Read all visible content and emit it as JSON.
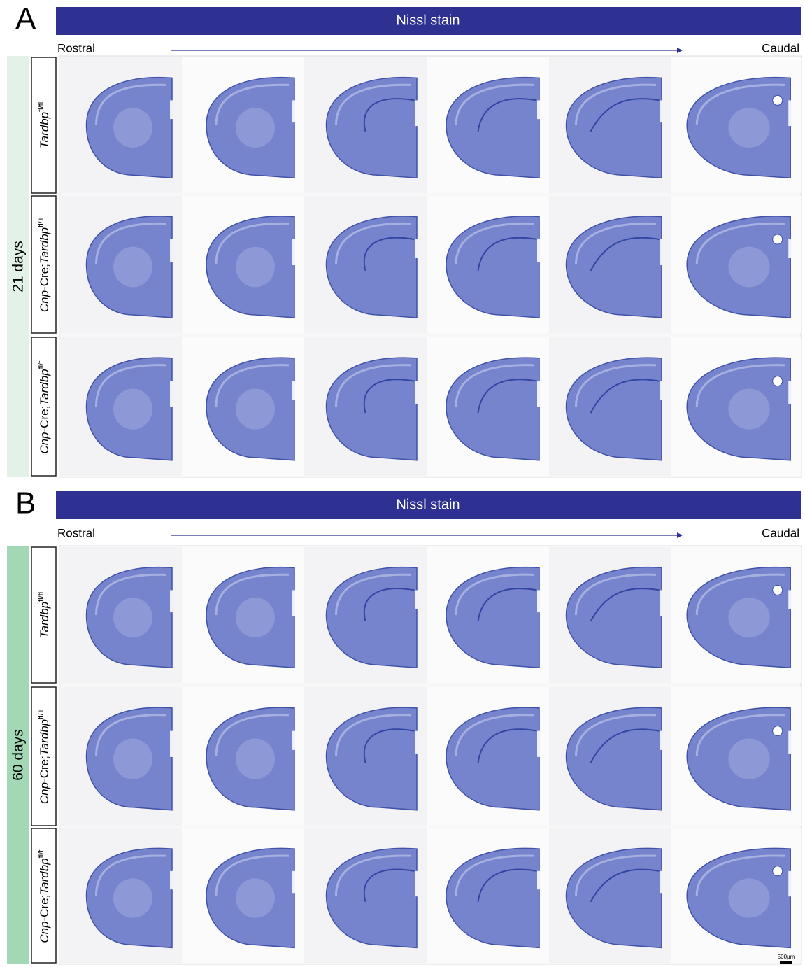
{
  "panels": [
    {
      "letter": "A",
      "banner": "Nissl stain",
      "rostral": "Rostral",
      "caudal": "Caudal",
      "age": "21 days",
      "age_color": "#e2f2e6",
      "rows": [
        [
          {
            "text": "Tardbp",
            "style": "italic"
          },
          {
            "text": "fl/fl",
            "style": "sup"
          }
        ],
        [
          {
            "text": "Cnp",
            "style": "italic"
          },
          {
            "text": "-Cre;",
            "style": "plain"
          },
          {
            "text": "Tardbp",
            "style": "italic"
          },
          {
            "text": "fl/+",
            "style": "sup"
          }
        ],
        [
          {
            "text": "Cnp",
            "style": "italic"
          },
          {
            "text": "-Cre;",
            "style": "plain"
          },
          {
            "text": "Tardbp",
            "style": "italic"
          },
          {
            "text": "fl/fl",
            "style": "sup"
          }
        ]
      ]
    },
    {
      "letter": "B",
      "banner": "Nissl stain",
      "rostral": "Rostral",
      "caudal": "Caudal",
      "age": "60 days",
      "age_color": "#a3d8b4",
      "rows": [
        [
          {
            "text": "Tardbp",
            "style": "italic"
          },
          {
            "text": "fl/fl",
            "style": "sup"
          }
        ],
        [
          {
            "text": "Cnp",
            "style": "italic"
          },
          {
            "text": "-Cre;",
            "style": "plain"
          },
          {
            "text": "Tardbp",
            "style": "italic"
          },
          {
            "text": "fl/+",
            "style": "sup"
          }
        ],
        [
          {
            "text": "Cnp",
            "style": "italic"
          },
          {
            "text": "-Cre;",
            "style": "plain"
          },
          {
            "text": "Tardbp",
            "style": "italic"
          },
          {
            "text": "fl/fl",
            "style": "sup"
          }
        ]
      ]
    }
  ],
  "scale_bar": "500μm"
}
